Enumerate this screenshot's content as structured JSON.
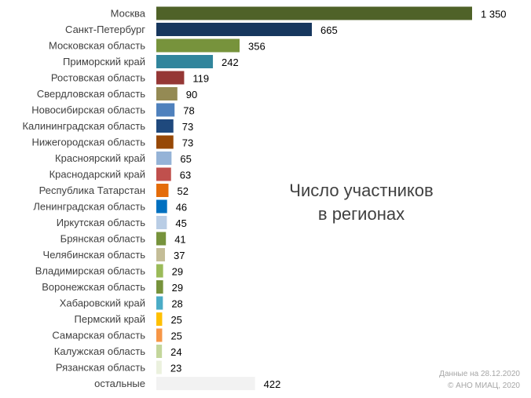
{
  "chart_data": {
    "type": "bar",
    "orientation": "horizontal",
    "title_lines": [
      "Число участников",
      "в регионах"
    ],
    "categories": [
      "Москва",
      "Санкт-Петербург",
      "Московская область",
      "Приморский край",
      "Ростовская область",
      "Свердловская область",
      "Новосибирская область",
      "Калининградская область",
      "Нижегородская область",
      "Красноярский край",
      "Краснодарский край",
      "Республика Татарстан",
      "Ленинградская область",
      "Иркутская область",
      "Брянская область",
      "Челябинская область",
      "Владимирская область",
      "Воронежская область",
      "Хабаровский край",
      "Пермский край",
      "Самарская область",
      "Калужская область",
      "Рязанская область",
      "остальные"
    ],
    "values": [
      1350,
      665,
      356,
      242,
      119,
      90,
      78,
      73,
      73,
      65,
      63,
      52,
      46,
      45,
      41,
      37,
      29,
      29,
      28,
      25,
      25,
      24,
      23,
      422
    ],
    "value_labels": [
      "1 350",
      "665",
      "356",
      "242",
      "119",
      "90",
      "78",
      "73",
      "73",
      "65",
      "63",
      "52",
      "46",
      "45",
      "41",
      "37",
      "29",
      "29",
      "28",
      "25",
      "25",
      "24",
      "23",
      "422"
    ],
    "colors": [
      "#4f6228",
      "#17375e",
      "#77933c",
      "#31859c",
      "#953735",
      "#948a54",
      "#4f81bd",
      "#1f497d",
      "#974806",
      "#95b3d7",
      "#c0504d",
      "#e46c0a",
      "#0070c0",
      "#b9cde5",
      "#77933c",
      "#c4bd97",
      "#9bbb59",
      "#77933c",
      "#4bacc6",
      "#ffc000",
      "#f79646",
      "#c3d69b",
      "#ebf1de",
      "#f2f2f2"
    ],
    "xlim": [
      0,
      1350
    ],
    "grid": false,
    "legend": "none"
  },
  "note": {
    "line1": "Данные на 28.12.2020",
    "line2": "© АНО МИАЦ, 2020"
  }
}
